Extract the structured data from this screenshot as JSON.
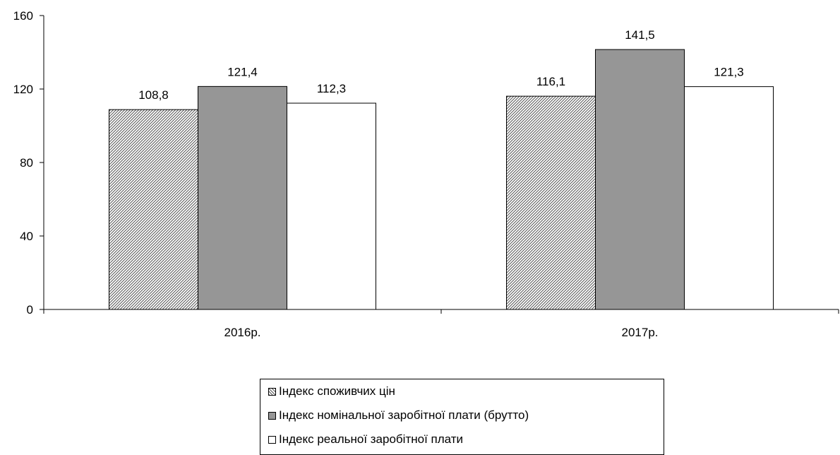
{
  "chart_data": {
    "type": "bar",
    "categories": [
      "2016р.",
      "2017р."
    ],
    "series": [
      {
        "name": "Індекс споживчих цін",
        "values": [
          108.8,
          116.1
        ],
        "fill": "hatch",
        "color": "#ffffff"
      },
      {
        "name": "Індекс номінальної заробітної плати (брутто)",
        "values": [
          121.4,
          141.5
        ],
        "fill": "solid",
        "color": "#969696"
      },
      {
        "name": "Індекс реальної заробітної плати",
        "values": [
          112.3,
          121.3
        ],
        "fill": "solid",
        "color": "#ffffff"
      }
    ],
    "data_labels": [
      [
        "108,8",
        "116,1"
      ],
      [
        "121,4",
        "141,5"
      ],
      [
        "112,3",
        "121,3"
      ]
    ],
    "title": "",
    "xlabel": "",
    "ylabel": "",
    "ylim": [
      0,
      160
    ],
    "yticks": [
      0,
      40,
      80,
      120,
      160
    ],
    "ytick_labels": [
      "0",
      "40",
      "80",
      "120",
      "160"
    ],
    "grid": false,
    "legend_position": "bottom-center"
  }
}
